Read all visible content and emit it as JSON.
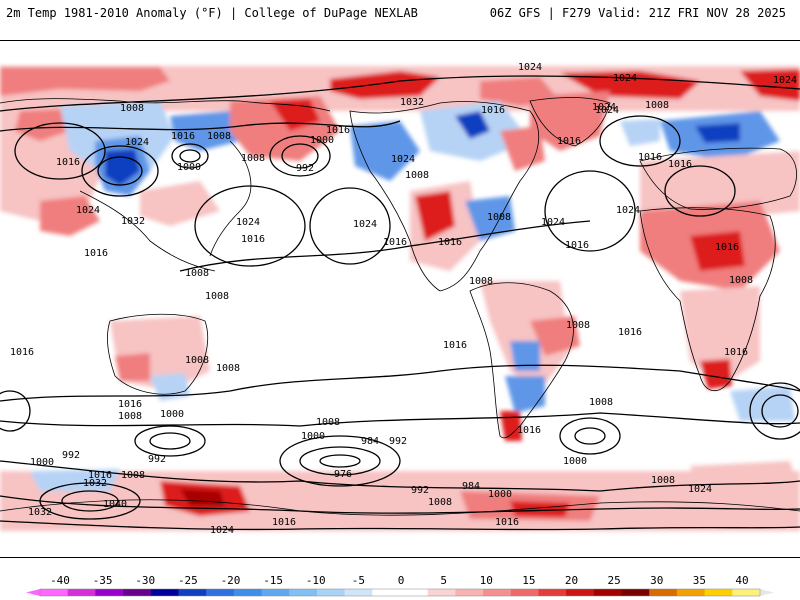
{
  "header": {
    "title_left": "2m Temp 1981-2010 Anomaly (°F) | College of DuPage NEXLAB",
    "title_right": "06Z GFS | F279 Valid: 21Z FRI NOV 28 2025"
  },
  "map": {
    "ocean_color": "#ffffff",
    "land_outline_color": "#000000",
    "contour_color": "#000000",
    "contour_unit": "hPa (MSLP isobars)",
    "pressure_labels": [
      {
        "text": "1024",
        "loc": "north-atlantic-arctic"
      },
      {
        "text": "1024",
        "loc": "greenland-sea"
      },
      {
        "text": "1024",
        "loc": "arctic-east"
      },
      {
        "text": "1008",
        "loc": "west-siberia"
      },
      {
        "text": "1032",
        "loc": "alaska"
      },
      {
        "text": "1016",
        "loc": "canada-north"
      },
      {
        "text": "1024",
        "loc": "greenland"
      },
      {
        "text": "1008",
        "loc": "north-atlantic"
      },
      {
        "text": "1024",
        "loc": "east-asia"
      },
      {
        "text": "1016",
        "loc": "siberia-east"
      },
      {
        "text": "1008",
        "loc": "okhotsk"
      },
      {
        "text": "1016",
        "loc": "bering"
      },
      {
        "text": "1000",
        "loc": "aleutian"
      },
      {
        "text": "1016",
        "loc": "central-asia"
      },
      {
        "text": "1000",
        "loc": "kamchatka"
      },
      {
        "text": "1008",
        "loc": "japan"
      },
      {
        "text": "992",
        "loc": "north-pacific-low"
      },
      {
        "text": "1024",
        "loc": "china"
      },
      {
        "text": "1032",
        "loc": "mongolia"
      },
      {
        "text": "1024",
        "loc": "north-pacific-high"
      },
      {
        "text": "1024",
        "loc": "northeast-pacific-high"
      },
      {
        "text": "1016",
        "loc": "hawaii"
      },
      {
        "text": "1016",
        "loc": "west-pacific"
      },
      {
        "text": "1024",
        "loc": "west-canada"
      },
      {
        "text": "1008",
        "loc": "rockies"
      },
      {
        "text": "1016",
        "loc": "southwest-us"
      },
      {
        "text": "1016",
        "loc": "gulf-mexico"
      },
      {
        "text": "1008",
        "loc": "east-us"
      },
      {
        "text": "1024",
        "loc": "atlantic-high"
      },
      {
        "text": "1016",
        "loc": "hudson"
      },
      {
        "text": "1016",
        "loc": "subtropic-atlantic"
      },
      {
        "text": "1024",
        "loc": "europe"
      },
      {
        "text": "1016",
        "loc": "scandinavia"
      },
      {
        "text": "1024",
        "loc": "russia"
      },
      {
        "text": "1016",
        "loc": "central-asia-east"
      },
      {
        "text": "1016",
        "loc": "north-africa"
      },
      {
        "text": "1008",
        "loc": "philippines"
      },
      {
        "text": "1008",
        "loc": "south-china-sea"
      },
      {
        "text": "1008",
        "loc": "east-africa"
      },
      {
        "text": "1008",
        "loc": "south-america"
      },
      {
        "text": "1008",
        "loc": "brazil"
      },
      {
        "text": "1016",
        "loc": "south-atlantic"
      },
      {
        "text": "1016",
        "loc": "southern-africa"
      },
      {
        "text": "1016",
        "loc": "west-australia"
      },
      {
        "text": "1008",
        "loc": "north-australia"
      },
      {
        "text": "1008",
        "loc": "south-pacific"
      },
      {
        "text": "1016",
        "loc": "southeast-pacific"
      },
      {
        "text": "1016",
        "loc": "south-indian"
      },
      {
        "text": "1008",
        "loc": "south-indian-west"
      },
      {
        "text": "1000",
        "loc": "south-indian-low"
      },
      {
        "text": "1008",
        "loc": "southern-pacific"
      },
      {
        "text": "1000",
        "loc": "southern-pacific-low"
      },
      {
        "text": "984",
        "loc": "southern-ocean-low"
      },
      {
        "text": "992",
        "loc": "southern-ocean"
      },
      {
        "text": "976",
        "loc": "southern-pacific-deep"
      },
      {
        "text": "1016",
        "loc": "chile"
      },
      {
        "text": "1008",
        "loc": "south-atlantic-low"
      },
      {
        "text": "1000",
        "loc": "south-atlantic-south"
      },
      {
        "text": "992",
        "loc": "indian-ocean-south"
      },
      {
        "text": "1000",
        "loc": "indian-ocean-west"
      },
      {
        "text": "992",
        "loc": "tasman"
      },
      {
        "text": "1016",
        "loc": "antarctic-indian"
      },
      {
        "text": "1008",
        "loc": "antarctic-indian-2"
      },
      {
        "text": "1032",
        "loc": "antarctic-1"
      },
      {
        "text": "1040",
        "loc": "antarctic-2"
      },
      {
        "text": "1032",
        "loc": "antarctic-3"
      },
      {
        "text": "992",
        "loc": "drake-1"
      },
      {
        "text": "984",
        "loc": "drake-2"
      },
      {
        "text": "1000",
        "loc": "weddell"
      },
      {
        "text": "1008",
        "loc": "antarctic-atlantic"
      },
      {
        "text": "1008",
        "loc": "antarctic-africa"
      },
      {
        "text": "1024",
        "loc": "antarctic-east"
      },
      {
        "text": "1016",
        "loc": "antarctic-south-pacific"
      },
      {
        "text": "1016",
        "loc": "antarctic-south-atlantic"
      },
      {
        "text": "1024",
        "loc": "antarctic-interior"
      }
    ]
  },
  "colorbar": {
    "unit": "°F",
    "ticks": [
      "-40",
      "-35",
      "-30",
      "-25",
      "-20",
      "-15",
      "-10",
      "-5",
      "0",
      "5",
      "10",
      "15",
      "20",
      "25",
      "30",
      "35",
      "40"
    ],
    "bins": [
      "#ff66ff",
      "#d42fd8",
      "#9900cc",
      "#66008c",
      "#00009c",
      "#1040c0",
      "#2f6fe0",
      "#3d8fe8",
      "#5fa8ef",
      "#82bff2",
      "#a9d3f6",
      "#cfe5fa",
      "#ffffff",
      "#ffffff",
      "#fbd3d3",
      "#f9b2b2",
      "#f59090",
      "#f06a6a",
      "#e43b3b",
      "#cc1515",
      "#a40000",
      "#7a0000",
      "#d96c00",
      "#f2a100",
      "#ffd000",
      "#fff07a"
    ]
  },
  "legend_colors": {
    "cold_strong": "#1040c0",
    "cold_mid": "#5f96e8",
    "cold_light": "#b6d3f5",
    "warm_light": "#f7c3c3",
    "warm_mid": "#f07e7e",
    "warm_strong": "#dd1f1f",
    "warm_extreme": "#a80000"
  }
}
